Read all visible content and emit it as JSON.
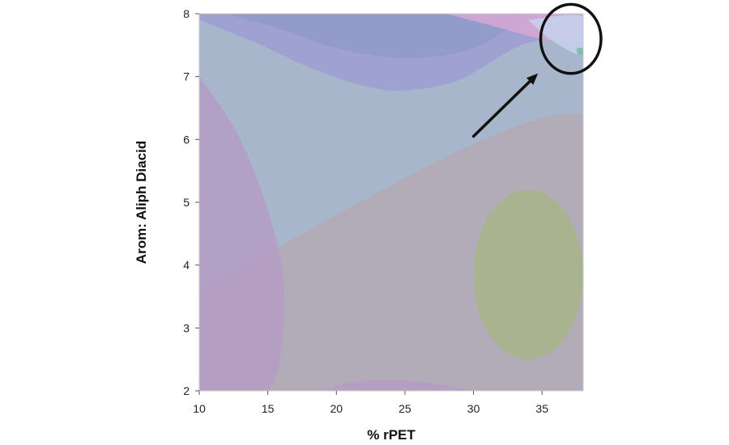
{
  "chart_data": {
    "type": "contour",
    "title": "",
    "xlabel": "% rPET",
    "ylabel": "Arom: Aliph Diacid",
    "xlim": [
      10,
      38
    ],
    "ylim": [
      2,
      8
    ],
    "x_ticks": [
      "10",
      "15",
      "20",
      "25",
      "30",
      "35"
    ],
    "y_ticks": [
      "2",
      "3",
      "4",
      "5",
      "6",
      "7",
      "8"
    ],
    "grid": false,
    "legend": "none",
    "colors": {
      "background_region": "#a8b6cc",
      "lower_region": "#b4aab4",
      "purple_region": "#b49cc4",
      "top_band": "#9e9ed0",
      "top_dark": "#8f9ac8",
      "green_region": "#a8b48c",
      "pink_region": "#d6a8d4",
      "light_blue_region": "#c4d2ec",
      "green_sliver": "#76b8a0",
      "annotation": "#111111"
    },
    "regions": [
      {
        "color": "lower_region",
        "boundary": [
          [
            10,
            3.6
          ],
          [
            38,
            6.4
          ],
          [
            38,
            2
          ],
          [
            10,
            2
          ]
        ]
      },
      {
        "color": "purple_region",
        "boundary": [
          [
            10,
            7.0
          ],
          [
            13,
            6.0
          ],
          [
            15.5,
            4.5
          ],
          [
            16.2,
            3.3
          ],
          [
            15,
            2
          ],
          [
            10,
            2
          ]
        ]
      },
      {
        "color": "purple_region",
        "boundary": [
          [
            19,
            2
          ],
          [
            21,
            2.13
          ],
          [
            24,
            2.17
          ],
          [
            27,
            2.12
          ],
          [
            30,
            2
          ]
        ]
      },
      {
        "color": "top_band",
        "boundary": [
          [
            10,
            8
          ],
          [
            38,
            8
          ],
          [
            38,
            7.7
          ],
          [
            33.5,
            7.5
          ],
          [
            29,
            6.95
          ],
          [
            25,
            6.78
          ],
          [
            22,
            6.85
          ],
          [
            18,
            7.15
          ],
          [
            14,
            7.55
          ],
          [
            10,
            7.9
          ]
        ]
      },
      {
        "color": "top_dark",
        "boundary": [
          [
            12,
            8
          ],
          [
            16,
            7.75
          ],
          [
            20,
            7.45
          ],
          [
            25,
            7.3
          ],
          [
            30,
            7.45
          ],
          [
            34,
            8
          ]
        ]
      },
      {
        "color": "green_region",
        "ellipse": {
          "cx": 34.0,
          "cy": 3.85,
          "rx": 4.0,
          "ry": 1.35
        }
      },
      {
        "color": "pink_region",
        "boundary": [
          [
            28,
            8
          ],
          [
            38,
            8
          ],
          [
            38,
            7.55
          ],
          [
            35,
            7.6
          ],
          [
            31.5,
            7.8
          ]
        ]
      },
      {
        "color": "light_blue_region",
        "boundary": [
          [
            34,
            7.9
          ],
          [
            38,
            7.95
          ],
          [
            38,
            7.35
          ],
          [
            35.5,
            7.6
          ]
        ]
      },
      {
        "color": "green_sliver",
        "boundary": [
          [
            37.5,
            7.45
          ],
          [
            38,
            7.45
          ],
          [
            38,
            7.35
          ],
          [
            37.6,
            7.35
          ]
        ]
      }
    ],
    "annotations": [
      {
        "type": "arrow",
        "from": [
          30.0,
          6.05
        ],
        "to": [
          34.7,
          7.05
        ]
      },
      {
        "type": "circle",
        "cx": 37.1,
        "cy": 7.6,
        "rx": 2.2,
        "ry": 0.55
      }
    ]
  }
}
